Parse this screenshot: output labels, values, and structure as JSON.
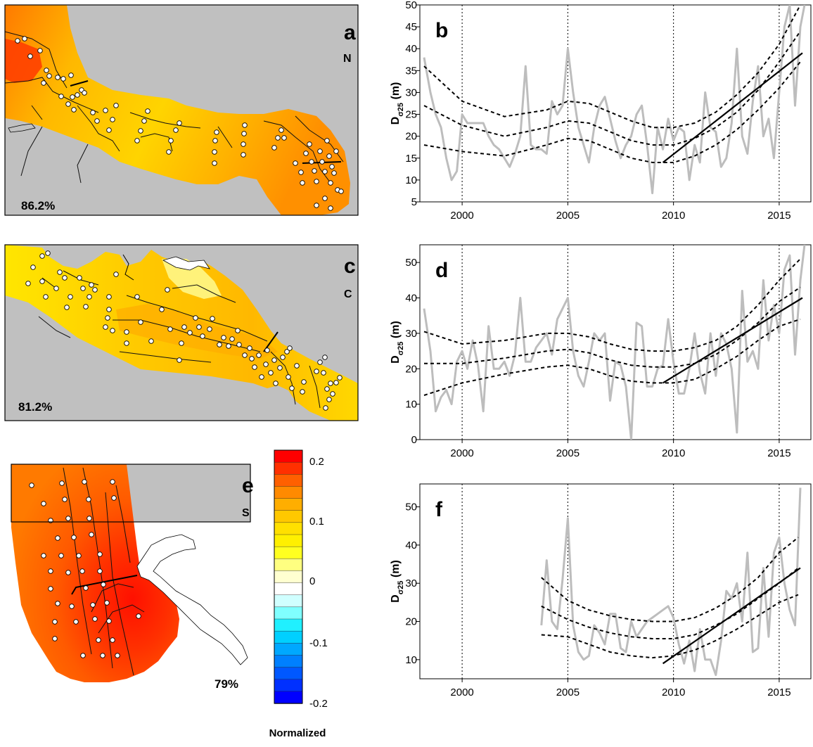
{
  "maps": [
    {
      "id": "a",
      "letter": "a",
      "region_label": "N",
      "percent": "86.2%"
    },
    {
      "id": "c",
      "letter": "c",
      "region_label": "C",
      "percent": "81.2%"
    },
    {
      "id": "e",
      "letter": "e",
      "region_label": "S",
      "percent": "79%"
    }
  ],
  "colorbar": {
    "ticks": [
      "0.2",
      "0.1",
      "0",
      "-0.1",
      "-0.2"
    ],
    "tick_values": [
      0.2,
      0.1,
      0,
      -0.1,
      -0.2
    ],
    "label": "Normalized",
    "colors_top_to_bottom": [
      "#ff0000",
      "#ff3000",
      "#ff6000",
      "#ff8a00",
      "#ffae00",
      "#ffc800",
      "#ffe000",
      "#fff000",
      "#ffff20",
      "#ffff80",
      "#ffffd0",
      "#ffffff",
      "#d0ffff",
      "#80ffff",
      "#20f0ff",
      "#00d0ff",
      "#00a8ff",
      "#0080ff",
      "#0058ff",
      "#0030ff",
      "#0000ff"
    ]
  },
  "chart_data": [
    {
      "type": "line",
      "panel_letter": "b",
      "ylabel_main": "D",
      "ylabel_sub": "σ25",
      "ylabel_unit": " (m)",
      "xlim": [
        1998.0,
        2016.5
      ],
      "ylim": [
        5,
        50
      ],
      "xticks": [
        2000,
        2005,
        2010,
        2015
      ],
      "yticks": [
        5,
        10,
        15,
        20,
        25,
        30,
        35,
        40,
        45,
        50
      ],
      "vlines": [
        2000,
        2005,
        2010,
        2015
      ],
      "series": [
        {
          "role": "observed",
          "color": "#bdbdbd",
          "x": [
            1998.2,
            1998.5,
            1998.75,
            1999.0,
            1999.25,
            1999.5,
            1999.75,
            2000.0,
            2000.25,
            2000.5,
            2000.75,
            2001.0,
            2001.25,
            2001.5,
            2001.75,
            2002.0,
            2002.25,
            2002.5,
            2002.75,
            2003.0,
            2003.25,
            2003.5,
            2003.75,
            2004.0,
            2004.25,
            2004.5,
            2004.75,
            2005.0,
            2005.25,
            2005.5,
            2005.75,
            2006.0,
            2006.25,
            2006.5,
            2006.75,
            2007.0,
            2007.25,
            2007.5,
            2007.75,
            2008.0,
            2008.25,
            2008.5,
            2008.75,
            2009.0,
            2009.25,
            2009.5,
            2009.75,
            2010.0,
            2010.25,
            2010.5,
            2010.75,
            2011.0,
            2011.25,
            2011.5,
            2011.75,
            2012.0,
            2012.25,
            2012.5,
            2012.75,
            2013.0,
            2013.25,
            2013.5,
            2013.75,
            2014.0,
            2014.25,
            2014.5,
            2014.75,
            2015.0,
            2015.25,
            2015.5,
            2015.75,
            2016.0,
            2016.2
          ],
          "y": [
            38,
            30,
            25,
            22,
            15,
            10,
            12,
            25,
            23,
            23,
            23,
            23,
            20,
            18,
            17,
            15,
            13,
            16,
            20,
            36,
            18,
            17,
            17,
            16,
            28,
            25,
            27,
            40,
            30,
            22,
            18,
            14,
            22,
            27,
            29,
            24,
            19,
            15,
            18,
            20,
            25,
            27,
            18,
            7,
            22,
            17,
            24,
            19,
            22,
            21,
            10,
            18,
            14,
            30,
            22,
            21,
            13,
            15,
            23,
            40,
            20,
            16,
            28,
            36,
            20,
            24,
            15,
            30,
            45,
            50,
            27,
            45,
            50
          ]
        },
        {
          "role": "trend",
          "color": "#000000",
          "x": [
            2009.5,
            2016.1
          ],
          "y": [
            14,
            39
          ]
        }
      ],
      "bands": [
        {
          "role": "upper",
          "x": [
            1998.2,
            2000,
            2002,
            2004,
            2005,
            2006,
            2007,
            2008,
            2009,
            2010,
            2011,
            2012,
            2013,
            2014,
            2015,
            2016
          ],
          "y": [
            36,
            28,
            24.5,
            26,
            28,
            27.5,
            25.5,
            23.5,
            22,
            22,
            23,
            25.5,
            29.5,
            34.5,
            41,
            50
          ]
        },
        {
          "role": "mid",
          "x": [
            1998.2,
            2000,
            2002,
            2004,
            2005,
            2006,
            2007,
            2008,
            2009,
            2010,
            2011,
            2012,
            2013,
            2014,
            2015,
            2016
          ],
          "y": [
            27,
            22.5,
            20,
            22,
            23.5,
            23,
            21,
            19,
            18,
            18,
            19.5,
            22,
            25.5,
            30.5,
            37,
            44
          ]
        },
        {
          "role": "lower",
          "x": [
            1998.2,
            2000,
            2002,
            2004,
            2005,
            2006,
            2007,
            2008,
            2009,
            2010,
            2011,
            2012,
            2013,
            2014,
            2015,
            2016
          ],
          "y": [
            18,
            16.5,
            15.5,
            18,
            19.5,
            19,
            17,
            15,
            14,
            14,
            15.5,
            18,
            21.5,
            26,
            31,
            37
          ]
        }
      ]
    },
    {
      "type": "line",
      "panel_letter": "d",
      "ylabel_main": "D",
      "ylabel_sub": "σ25",
      "ylabel_unit": " (m)",
      "xlim": [
        1998.0,
        2016.5
      ],
      "ylim": [
        0,
        55
      ],
      "xticks": [
        2000,
        2005,
        2010,
        2015
      ],
      "yticks": [
        0,
        10,
        20,
        30,
        40,
        50
      ],
      "vlines": [
        2000,
        2005,
        2010,
        2015
      ],
      "series": [
        {
          "role": "observed",
          "color": "#bdbdbd",
          "x": [
            1998.2,
            1998.5,
            1998.75,
            1999.0,
            1999.25,
            1999.5,
            1999.75,
            2000.0,
            2000.25,
            2000.5,
            2000.75,
            2001.0,
            2001.25,
            2001.5,
            2001.75,
            2002.0,
            2002.25,
            2002.5,
            2002.75,
            2003.0,
            2003.25,
            2003.5,
            2003.75,
            2004.0,
            2004.25,
            2004.5,
            2004.75,
            2005.0,
            2005.25,
            2005.5,
            2005.75,
            2006.0,
            2006.25,
            2006.5,
            2006.75,
            2007.0,
            2007.25,
            2007.5,
            2007.75,
            2008.0,
            2008.25,
            2008.5,
            2008.75,
            2009.0,
            2009.25,
            2009.5,
            2009.75,
            2010.0,
            2010.25,
            2010.5,
            2010.75,
            2011.0,
            2011.25,
            2011.5,
            2011.75,
            2012.0,
            2012.25,
            2012.5,
            2012.75,
            2013.0,
            2013.25,
            2013.5,
            2013.75,
            2014.0,
            2014.25,
            2014.5,
            2014.75,
            2015.0,
            2015.25,
            2015.5,
            2015.75,
            2016.0,
            2016.2
          ],
          "y": [
            37,
            25,
            8,
            12,
            14,
            10,
            22,
            25,
            20,
            28,
            21,
            8,
            32,
            20,
            20,
            22,
            18,
            24,
            40,
            22,
            22,
            26,
            28,
            30,
            24,
            34,
            37,
            40,
            25,
            18,
            15,
            22,
            30,
            28,
            30,
            11,
            22,
            21,
            15,
            0,
            33,
            32,
            15,
            15,
            20,
            21,
            34,
            22,
            13,
            13,
            20,
            30,
            19,
            13,
            30,
            18,
            30,
            27,
            20,
            2,
            42,
            22,
            25,
            20,
            45,
            28,
            38,
            30,
            48,
            52,
            24,
            45,
            55
          ]
        },
        {
          "role": "trend",
          "color": "#000000",
          "x": [
            2009.5,
            2016.1
          ],
          "y": [
            16,
            40
          ]
        }
      ],
      "bands": [
        {
          "role": "upper",
          "x": [
            1998.2,
            2000,
            2002,
            2004,
            2005,
            2006,
            2007,
            2008,
            2009,
            2010,
            2011,
            2012,
            2013,
            2014,
            2015,
            2016
          ],
          "y": [
            30.5,
            27,
            28,
            30,
            30,
            29,
            27,
            25.5,
            25,
            25,
            26,
            28,
            32,
            38,
            45,
            51
          ]
        },
        {
          "role": "mid",
          "x": [
            1998.2,
            2000,
            2002,
            2004,
            2005,
            2006,
            2007,
            2008,
            2009,
            2010,
            2011,
            2012,
            2013,
            2014,
            2015,
            2016
          ],
          "y": [
            21.5,
            21.5,
            23,
            25,
            25.5,
            24.5,
            22.5,
            21,
            20.5,
            20.5,
            21.5,
            24,
            28,
            33,
            39,
            43
          ]
        },
        {
          "role": "lower",
          "x": [
            1998.2,
            2000,
            2002,
            2004,
            2005,
            2006,
            2007,
            2008,
            2009,
            2010,
            2011,
            2012,
            2013,
            2014,
            2015,
            2016
          ],
          "y": [
            12.5,
            16,
            18.5,
            20.5,
            21,
            20,
            18,
            16.5,
            16,
            16,
            17,
            20,
            23.5,
            28,
            32,
            34
          ]
        }
      ]
    },
    {
      "type": "line",
      "panel_letter": "f",
      "ylabel_main": "D",
      "ylabel_sub": "σ25",
      "ylabel_unit": " (m)",
      "xlim": [
        1998.0,
        2016.5
      ],
      "ylim": [
        5,
        56
      ],
      "xticks": [
        2000,
        2005,
        2010,
        2015
      ],
      "yticks": [
        10,
        20,
        30,
        40,
        50
      ],
      "vlines": [
        2000,
        2005,
        2010,
        2015
      ],
      "series": [
        {
          "role": "observed",
          "color": "#bdbdbd",
          "x": [
            2003.75,
            2004.0,
            2004.25,
            2004.5,
            2004.75,
            2005.0,
            2005.25,
            2005.5,
            2005.75,
            2006.0,
            2006.25,
            2006.5,
            2006.75,
            2007.0,
            2007.25,
            2007.5,
            2007.75,
            2008.0,
            2008.25,
            2008.5,
            2008.75,
            2009.0,
            2009.25,
            2009.5,
            2009.75,
            2010.0,
            2010.25,
            2010.5,
            2010.75,
            2011.0,
            2011.25,
            2011.5,
            2011.75,
            2012.0,
            2012.25,
            2012.5,
            2012.75,
            2013.0,
            2013.25,
            2013.5,
            2013.75,
            2014.0,
            2014.25,
            2014.5,
            2014.75,
            2015.0,
            2015.25,
            2015.5,
            2015.75,
            2016.0
          ],
          "y": [
            19,
            36,
            20,
            18,
            31,
            47,
            19,
            12,
            10,
            11,
            19,
            17,
            14,
            22,
            22,
            13,
            12,
            20,
            16,
            18,
            20,
            21,
            22,
            23,
            24,
            21,
            14,
            9,
            15,
            7,
            18,
            10,
            10,
            6,
            15,
            28,
            26,
            30,
            20,
            38,
            12,
            13,
            34,
            16,
            38,
            42,
            30,
            23,
            19,
            55
          ]
        },
        {
          "role": "trend",
          "color": "#000000",
          "x": [
            2009.5,
            2016.0
          ],
          "y": [
            9,
            34
          ]
        }
      ],
      "bands": [
        {
          "role": "upper",
          "x": [
            2003.75,
            2005,
            2006,
            2007,
            2008,
            2009,
            2010,
            2011,
            2012,
            2013,
            2014,
            2015,
            2015.9
          ],
          "y": [
            31.5,
            25.5,
            23,
            21.5,
            20.5,
            20,
            20,
            21,
            23.5,
            27,
            31.5,
            38,
            42
          ]
        },
        {
          "role": "mid",
          "x": [
            2003.75,
            2005,
            2006,
            2007,
            2008,
            2009,
            2010,
            2011,
            2012,
            2013,
            2014,
            2015,
            2015.9
          ],
          "y": [
            24,
            20.5,
            18.5,
            17,
            16,
            15.5,
            15.5,
            16.5,
            19,
            22,
            26,
            30,
            34
          ]
        },
        {
          "role": "lower",
          "x": [
            2003.75,
            2005,
            2006,
            2007,
            2008,
            2009,
            2010,
            2011,
            2012,
            2013,
            2014,
            2015,
            2015.9
          ],
          "y": [
            16.5,
            16,
            14,
            12,
            11,
            10.5,
            11,
            12.5,
            15,
            18,
            21.5,
            25,
            27
          ]
        }
      ]
    }
  ]
}
